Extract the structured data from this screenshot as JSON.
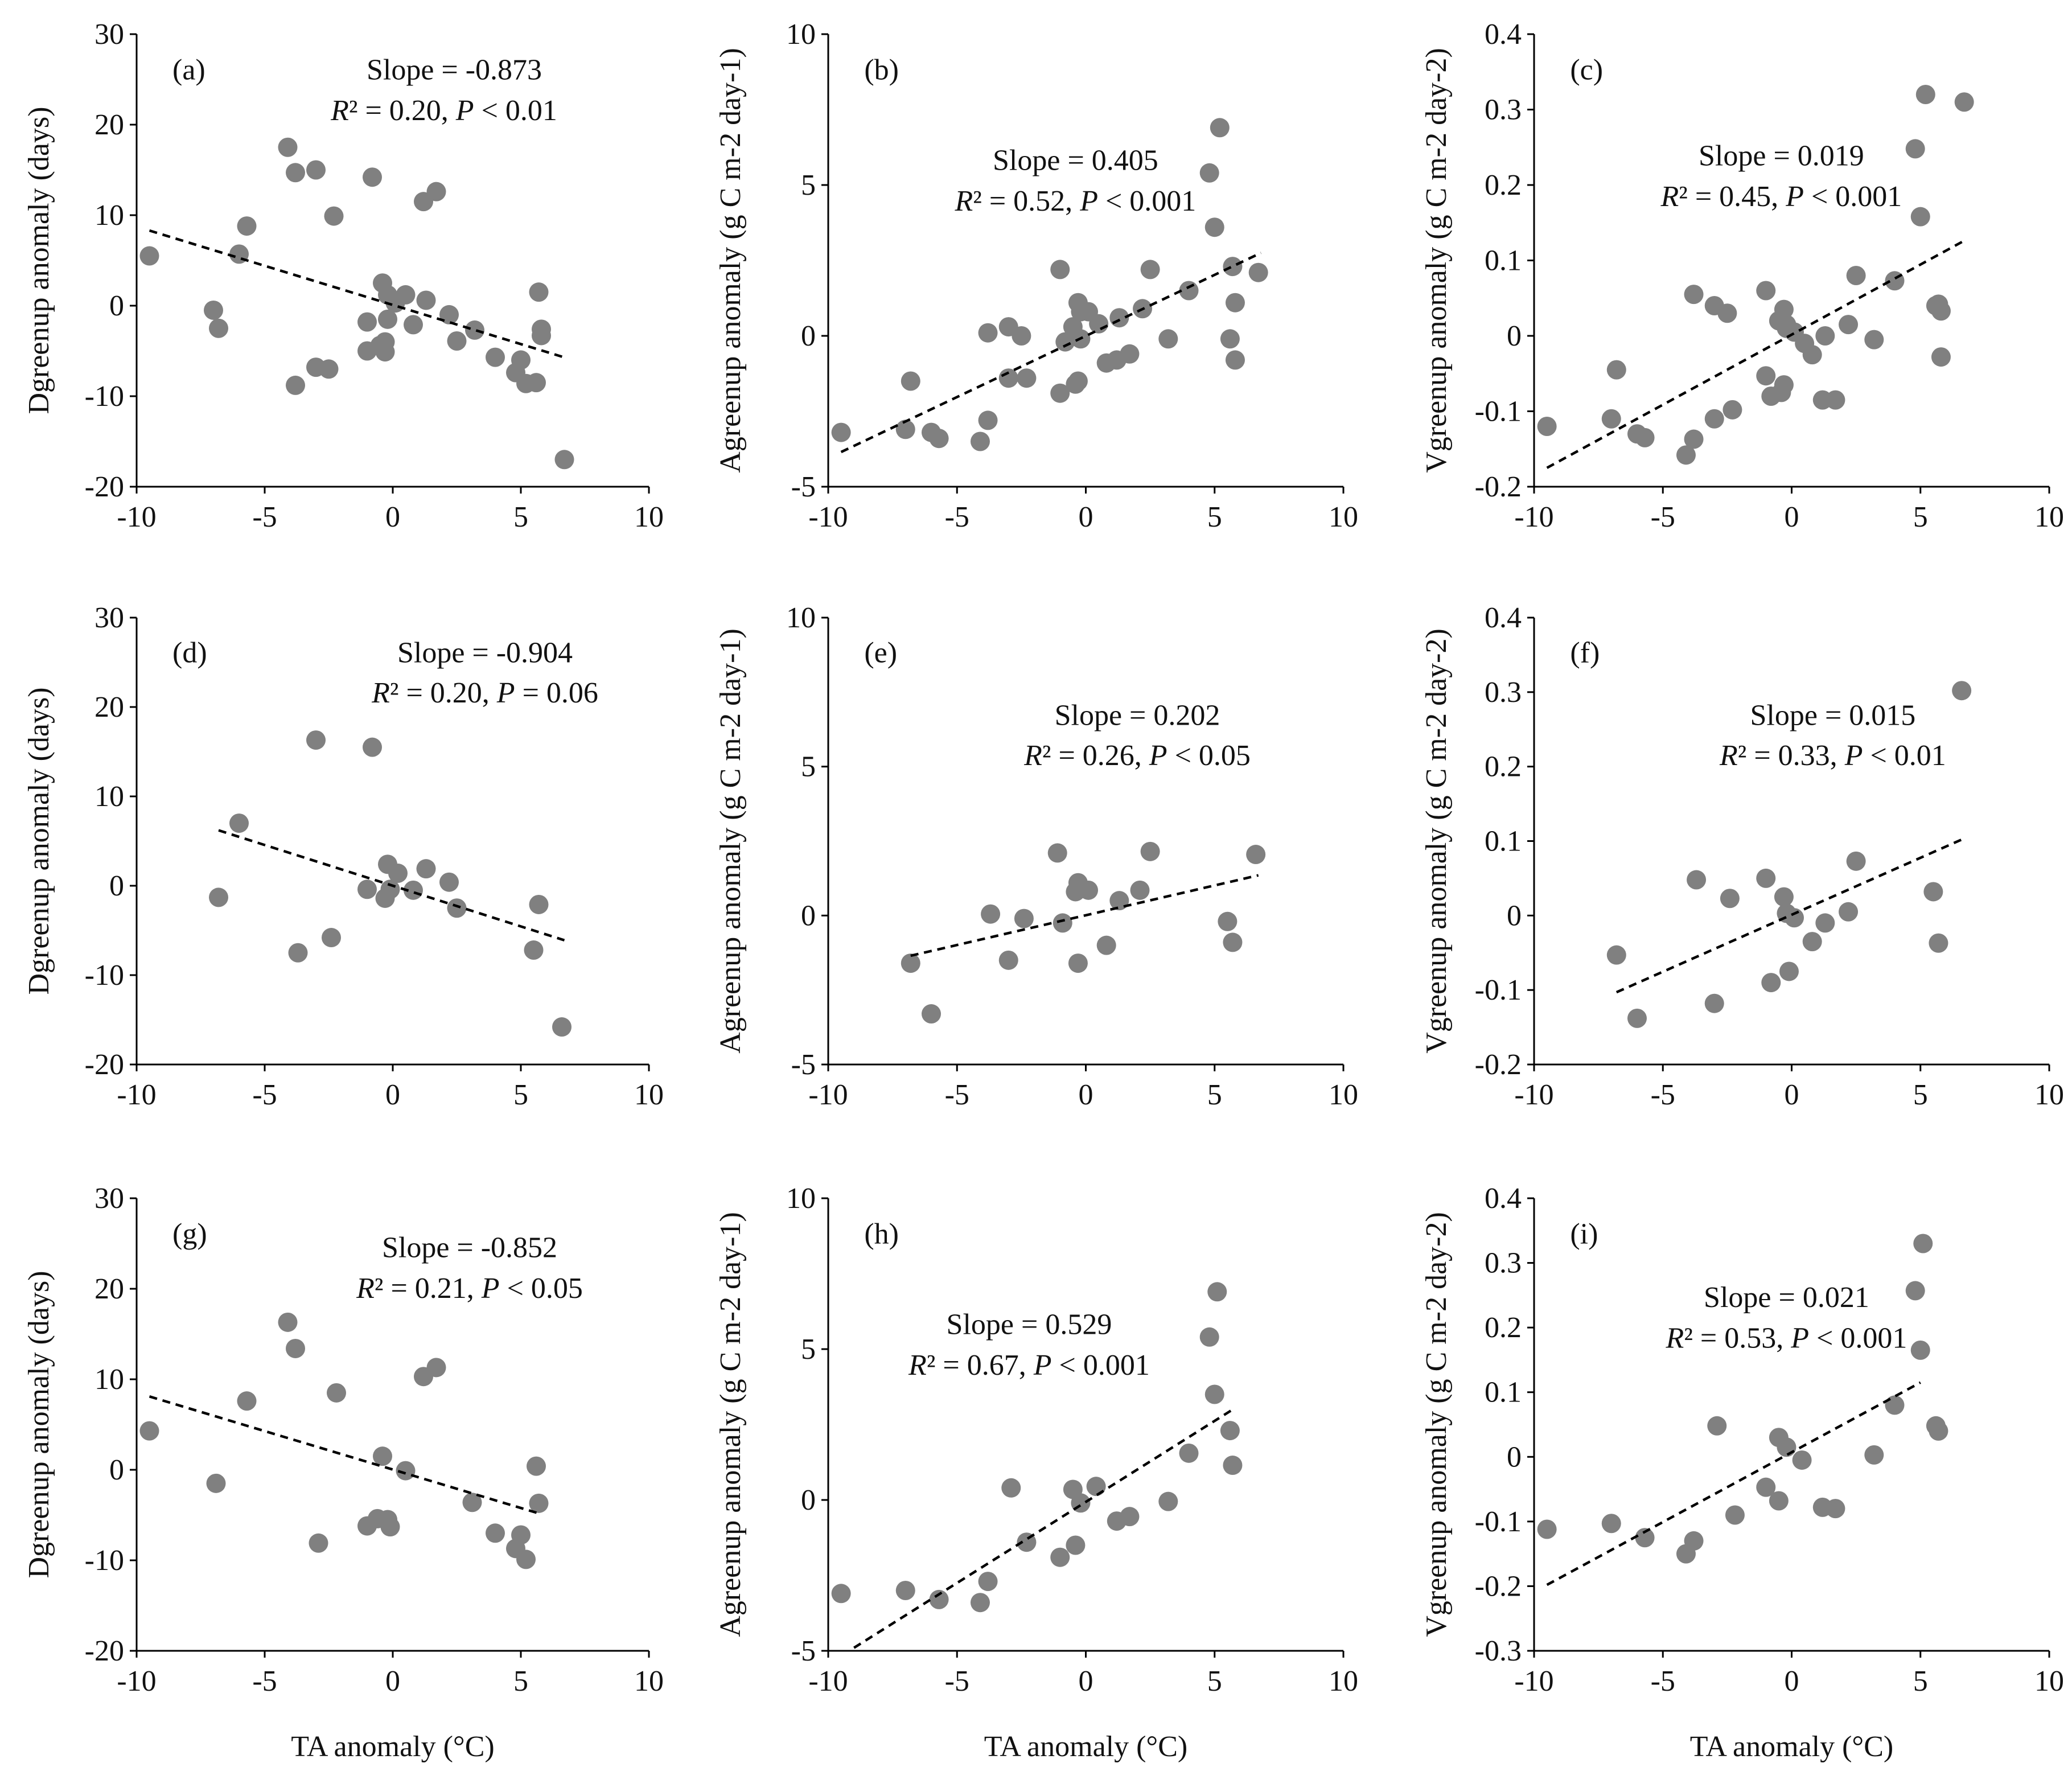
{
  "figure": {
    "xlabel": "TA anomaly (°C)",
    "marker_color": "#808080",
    "line_color": "#000000"
  },
  "chart_data": [
    {
      "type": "scatter",
      "panel": "(a)",
      "ylabel": "Dgreenup anomaly (days)",
      "ylabel_sup": "",
      "slope_text": "Slope = -0.873",
      "stat_r2": "R² = 0.20, ",
      "stat_p": "P < 0.01",
      "xlim": [
        -10,
        10
      ],
      "ylim": [
        -20,
        30
      ],
      "xticks": [
        -10,
        -5,
        0,
        5,
        10
      ],
      "yticks": [
        -20,
        -10,
        0,
        10,
        20,
        30
      ],
      "fit": {
        "x": [
          -9.5,
          6.8
        ],
        "y": [
          8.3,
          -5.8
        ]
      },
      "x": [
        -9.5,
        -7.0,
        -6.8,
        -6.0,
        -5.7,
        -4.1,
        -3.8,
        -3.8,
        -3.0,
        -3.0,
        -2.3,
        -2.5,
        -0.8,
        -1.0,
        -1.0,
        -0.4,
        -0.3,
        -0.2,
        -0.5,
        -0.3,
        -0.2,
        0.1,
        0.5,
        0.8,
        1.2,
        1.3,
        1.7,
        2.2,
        2.5,
        3.2,
        4.0,
        4.8,
        5.0,
        5.2,
        5.6,
        5.7,
        5.8,
        5.8,
        6.7
      ],
      "y": [
        5.5,
        -0.5,
        -2.5,
        5.7,
        8.8,
        17.5,
        14.7,
        -8.8,
        15.0,
        -6.8,
        9.9,
        -7.0,
        14.2,
        -1.8,
        -5.0,
        2.5,
        -4.0,
        -1.5,
        -4.4,
        -5.1,
        1.2,
        0.3,
        1.2,
        -2.1,
        11.5,
        0.6,
        12.6,
        -1.0,
        -3.9,
        -2.7,
        -5.7,
        -7.4,
        -6.0,
        -8.6,
        -8.5,
        1.5,
        -2.6,
        -3.3,
        -17.0
      ]
    },
    {
      "type": "scatter",
      "panel": "(b)",
      "ylabel": "Agreenup anomaly (g C m-2 day-1)",
      "ylabel_sup": "",
      "slope_text": "Slope = 0.405",
      "stat_r2": "R² = 0.52, ",
      "stat_p": "P < 0.001",
      "xlim": [
        -10,
        10
      ],
      "ylim": [
        -5,
        10
      ],
      "xticks": [
        -10,
        -5,
        0,
        5,
        10
      ],
      "yticks": [
        -5,
        0,
        5,
        10
      ],
      "fit": {
        "x": [
          -9.5,
          6.8
        ],
        "y": [
          -3.85,
          2.75
        ]
      },
      "x": [
        -9.5,
        -7.0,
        -6.8,
        -6.0,
        -5.7,
        -4.1,
        -3.8,
        -3.8,
        -3.0,
        -3.0,
        -2.5,
        -2.3,
        -1.0,
        -1.0,
        -0.8,
        -0.5,
        -0.4,
        -0.3,
        -0.2,
        -0.3,
        -0.2,
        0.1,
        0.5,
        0.8,
        1.2,
        1.3,
        1.7,
        2.2,
        2.5,
        3.2,
        4.0,
        4.8,
        5.0,
        5.2,
        5.6,
        5.7,
        5.8,
        5.8,
        6.7
      ],
      "y": [
        -3.2,
        -3.1,
        -1.5,
        -3.2,
        -3.4,
        -3.5,
        0.1,
        -2.8,
        0.3,
        -1.4,
        0.0,
        -1.4,
        2.2,
        -1.9,
        -0.2,
        0.3,
        -1.6,
        1.1,
        0.8,
        -1.5,
        -0.1,
        0.8,
        0.4,
        -0.9,
        -0.8,
        0.6,
        -0.6,
        0.9,
        2.2,
        -0.1,
        1.5,
        5.4,
        3.6,
        6.9,
        -0.1,
        2.3,
        1.1,
        -0.8,
        2.1
      ]
    },
    {
      "type": "scatter",
      "panel": "(c)",
      "ylabel": "Vgreenup anomaly (g C m-2 day-2)",
      "ylabel_sup": "",
      "slope_text": "Slope = 0.019",
      "stat_r2": "R² = 0.45, ",
      "stat_p": "P < 0.001",
      "xlim": [
        -10,
        10
      ],
      "ylim": [
        -0.2,
        0.4
      ],
      "xticks": [
        -10,
        -5,
        0,
        5,
        10
      ],
      "yticks": [
        -0.2,
        -0.1,
        0,
        0.1,
        0.2,
        0.3,
        0.4
      ],
      "fit": {
        "x": [
          -9.5,
          6.8
        ],
        "y": [
          -0.175,
          0.128
        ]
      },
      "x": [
        -9.5,
        -7.0,
        -6.8,
        -6.0,
        -5.7,
        -4.1,
        -3.8,
        -3.8,
        -3.0,
        -3.0,
        -2.5,
        -2.3,
        -1.0,
        -1.0,
        -0.8,
        -0.5,
        -0.4,
        -0.3,
        -0.2,
        -0.3,
        -0.2,
        0.1,
        0.5,
        0.8,
        1.2,
        1.3,
        1.7,
        2.2,
        2.5,
        3.2,
        4.0,
        4.8,
        5.0,
        5.2,
        5.6,
        5.7,
        5.8,
        5.8,
        6.7
      ],
      "y": [
        -0.12,
        -0.11,
        -0.045,
        -0.13,
        -0.135,
        -0.158,
        0.055,
        -0.137,
        0.04,
        -0.11,
        0.03,
        -0.098,
        0.06,
        -0.053,
        -0.08,
        0.02,
        -0.075,
        0.035,
        0.015,
        -0.065,
        0.01,
        0.005,
        -0.01,
        -0.025,
        -0.085,
        0.0,
        -0.085,
        0.015,
        0.08,
        -0.005,
        0.073,
        0.248,
        0.158,
        0.32,
        0.04,
        0.042,
        0.033,
        -0.028,
        0.31
      ]
    },
    {
      "type": "scatter",
      "panel": "(d)",
      "ylabel": "Dgreenup anomaly (days)",
      "ylabel_sup": "",
      "slope_text": "Slope = -0.904",
      "stat_r2": "R² = 0.20, ",
      "stat_p": "P = 0.06",
      "xlim": [
        -10,
        10
      ],
      "ylim": [
        -20,
        30
      ],
      "xticks": [
        -10,
        -5,
        0,
        5,
        10
      ],
      "yticks": [
        -20,
        -10,
        0,
        10,
        20,
        30
      ],
      "fit": {
        "x": [
          -6.8,
          6.7
        ],
        "y": [
          6.2,
          -6.1
        ]
      },
      "x": [
        -6.8,
        -6.0,
        -3.7,
        -3.0,
        -2.4,
        -1.0,
        -0.8,
        -0.3,
        -0.2,
        -0.1,
        0.2,
        0.8,
        1.3,
        2.2,
        2.5,
        5.5,
        5.7,
        6.6
      ],
      "y": [
        -1.3,
        7.0,
        -7.5,
        16.3,
        -5.8,
        -0.4,
        15.5,
        -1.4,
        2.4,
        -0.4,
        1.4,
        -0.5,
        1.9,
        0.4,
        -2.5,
        -7.2,
        -2.1,
        -15.8
      ]
    },
    {
      "type": "scatter",
      "panel": "(e)",
      "ylabel": "Agreenup anomaly (g C m-2 day-1)",
      "ylabel_sup": "",
      "slope_text": "Slope = 0.202",
      "stat_r2": "R² = 0.26, ",
      "stat_p": "P < 0.05",
      "xlim": [
        -10,
        10
      ],
      "ylim": [
        -5,
        10
      ],
      "xticks": [
        -10,
        -5,
        0,
        5,
        10
      ],
      "yticks": [
        -5,
        0,
        5,
        10
      ],
      "fit": {
        "x": [
          -6.8,
          6.7
        ],
        "y": [
          -1.35,
          1.35
        ]
      },
      "x": [
        -6.8,
        -6.0,
        -3.7,
        -3.0,
        -2.4,
        -1.1,
        -0.9,
        -0.3,
        -0.4,
        -0.3,
        0.1,
        0.8,
        1.3,
        2.1,
        2.5,
        5.5,
        5.7,
        6.6
      ],
      "y": [
        -1.6,
        -3.3,
        0.05,
        -1.5,
        -0.1,
        2.1,
        -0.25,
        1.1,
        0.8,
        -1.6,
        0.85,
        -1.0,
        0.5,
        0.85,
        2.15,
        -0.2,
        -0.9,
        2.05
      ]
    },
    {
      "type": "scatter",
      "panel": "(f)",
      "ylabel": "Vgreenup anomaly (g C m-2 day-2)",
      "ylabel_sup": "",
      "slope_text": "Slope = 0.015",
      "stat_r2": "R² = 0.33, ",
      "stat_p": "P < 0.01",
      "xlim": [
        -10,
        10
      ],
      "ylim": [
        -0.2,
        0.4
      ],
      "xticks": [
        -10,
        -5,
        0,
        5,
        10
      ],
      "yticks": [
        -0.2,
        -0.1,
        0,
        0.1,
        0.2,
        0.3,
        0.4
      ],
      "fit": {
        "x": [
          -6.8,
          6.6
        ],
        "y": [
          -0.103,
          0.102
        ]
      },
      "x": [
        -6.8,
        -6.0,
        -3.7,
        -3.0,
        -2.4,
        -1.0,
        -0.8,
        -0.3,
        -0.2,
        -0.1,
        0.1,
        0.8,
        1.3,
        2.2,
        2.5,
        5.5,
        5.7,
        6.6
      ],
      "y": [
        -0.053,
        -0.138,
        0.048,
        -0.118,
        0.023,
        0.05,
        -0.09,
        0.025,
        0.003,
        -0.075,
        -0.003,
        -0.035,
        -0.01,
        0.005,
        0.073,
        0.032,
        -0.037,
        0.302
      ]
    },
    {
      "type": "scatter",
      "panel": "(g)",
      "ylabel": "Dgreenup anomaly (days)",
      "ylabel_sup": "",
      "slope_text": "Slope = -0.852",
      "stat_r2": "R² = 0.21, ",
      "stat_p": "P < 0.05",
      "xlim": [
        -10,
        10
      ],
      "ylim": [
        -20,
        30
      ],
      "xticks": [
        -10,
        -5,
        0,
        5,
        10
      ],
      "yticks": [
        -20,
        -10,
        0,
        10,
        20,
        30
      ],
      "fit": {
        "x": [
          -9.5,
          5.8
        ],
        "y": [
          8.1,
          -4.9
        ]
      },
      "x": [
        -9.5,
        -6.9,
        -5.7,
        -4.1,
        -3.8,
        -2.9,
        -2.2,
        -1.0,
        -0.6,
        -0.4,
        -0.2,
        -0.1,
        0.5,
        1.2,
        1.7,
        3.1,
        4.0,
        4.8,
        5.0,
        5.2,
        5.6,
        5.7
      ],
      "y": [
        4.3,
        -1.5,
        7.6,
        16.3,
        13.4,
        -8.1,
        8.5,
        -6.2,
        -5.4,
        1.5,
        -5.5,
        -6.3,
        -0.1,
        10.3,
        11.3,
        -3.6,
        -7.0,
        -8.7,
        -7.2,
        -9.9,
        0.4,
        -3.7
      ]
    },
    {
      "type": "scatter",
      "panel": "(h)",
      "ylabel": "Agreenup anomaly (g C m-2 day-1)",
      "ylabel_sup": "",
      "slope_text": "Slope = 0.529",
      "stat_r2": "R² = 0.67, ",
      "stat_p": "P < 0.001",
      "xlim": [
        -10,
        10
      ],
      "ylim": [
        -5,
        10
      ],
      "xticks": [
        -10,
        -5,
        0,
        5,
        10
      ],
      "yticks": [
        -5,
        0,
        5,
        10
      ],
      "fit": {
        "x": [
          -9.0,
          5.8
        ],
        "y": [
          -4.9,
          3.05
        ]
      },
      "x": [
        -9.5,
        -7.0,
        -5.7,
        -4.1,
        -3.8,
        -2.9,
        -2.3,
        -1.0,
        -0.5,
        -0.4,
        -0.2,
        0.4,
        1.2,
        1.7,
        3.2,
        4.0,
        4.8,
        5.0,
        5.1,
        5.6,
        5.7
      ],
      "y": [
        -3.1,
        -3.0,
        -3.3,
        -3.4,
        -2.7,
        0.4,
        -1.4,
        -1.9,
        0.35,
        -1.5,
        -0.1,
        0.45,
        -0.7,
        -0.55,
        -0.05,
        1.55,
        5.4,
        3.5,
        6.9,
        2.3,
        1.15
      ]
    },
    {
      "type": "scatter",
      "panel": "(i)",
      "ylabel": "Vgreenup anomaly (g C m-2 day-2)",
      "ylabel_sup": "",
      "slope_text": "Slope = 0.021",
      "stat_r2": "R² = 0.53, ",
      "stat_p": "P < 0.001",
      "xlim": [
        -10,
        10
      ],
      "ylim": [
        -0.3,
        0.4
      ],
      "xticks": [
        -10,
        -5,
        0,
        5,
        10
      ],
      "yticks": [
        -0.3,
        -0.2,
        -0.1,
        0,
        0.1,
        0.2,
        0.3,
        0.4
      ],
      "fit": {
        "x": [
          -9.5,
          5.0
        ],
        "y": [
          -0.198,
          0.115
        ]
      },
      "x": [
        -9.5,
        -7.0,
        -5.7,
        -4.1,
        -3.8,
        -2.9,
        -2.2,
        -1.0,
        -0.5,
        -0.5,
        -0.2,
        0.4,
        1.2,
        1.7,
        3.2,
        4.0,
        4.8,
        5.0,
        5.1,
        5.6,
        5.7
      ],
      "y": [
        -0.112,
        -0.103,
        -0.125,
        -0.15,
        -0.13,
        0.048,
        -0.09,
        -0.047,
        0.03,
        -0.068,
        0.015,
        -0.005,
        -0.078,
        -0.08,
        0.003,
        0.08,
        0.257,
        0.165,
        0.33,
        0.048,
        0.04
      ]
    }
  ]
}
